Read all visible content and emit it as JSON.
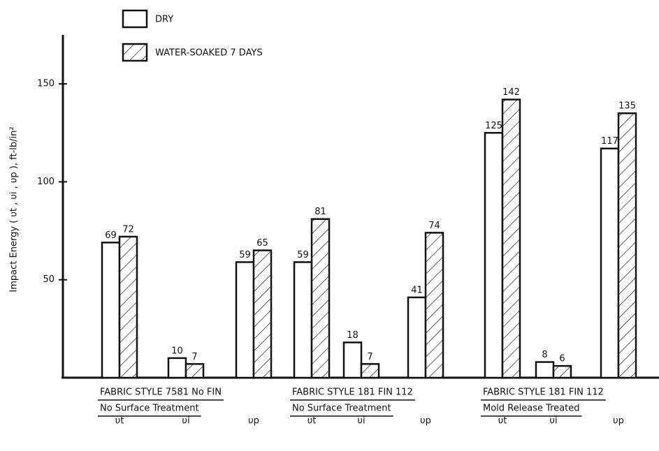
{
  "chart_data": {
    "type": "bar",
    "y_label": "Impact Energy  ( υt , υi , υp ),  ft-lb/in²",
    "categories": [
      "υt",
      "υi",
      "υp",
      "υt",
      "υi",
      "υp",
      "υt",
      "υi",
      "υp"
    ],
    "groups": [
      {
        "label": "FABRIC  STYLE  7581  No  FIN",
        "treatment": "No  Surface  Treatment"
      },
      {
        "label": "FABRIC  STYLE  181   FIN  112",
        "treatment": "No Surface  Treatment"
      },
      {
        "label": "FABRIC  STYLE  181   FIN  112",
        "treatment": "Mold  Release  Treated"
      }
    ],
    "series": [
      {
        "name": "DRY",
        "color": "#ffffff",
        "hatch": false,
        "values": [
          69,
          10,
          59,
          59,
          18,
          41,
          125,
          8,
          117
        ]
      },
      {
        "name": "WATER-SOAKED 7 DAYS",
        "color": "#ffffff",
        "hatch": true,
        "values": [
          72,
          7,
          65,
          81,
          7,
          74,
          142,
          6,
          135
        ]
      }
    ],
    "ylim": [
      0,
      175
    ],
    "yticks": [
      50,
      100,
      150
    ],
    "grid": false
  }
}
